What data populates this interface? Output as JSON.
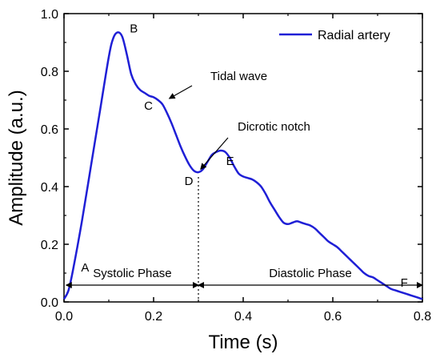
{
  "chart_data": {
    "type": "line",
    "xlabel": "Time (s)",
    "ylabel": "Amplitude (a.u.)",
    "xlim": [
      0.0,
      0.8
    ],
    "ylim": [
      0.0,
      1.0
    ],
    "x_ticks": [
      "0.0",
      "0.2",
      "0.4",
      "0.6",
      "0.8"
    ],
    "y_ticks": [
      "0.0",
      "0.2",
      "0.4",
      "0.6",
      "0.8",
      "1.0"
    ],
    "grid": false,
    "legend_position": "top-right",
    "series": [
      {
        "name": "Radial artery",
        "color": "#1f1fd6",
        "x": [
          0.0,
          0.01,
          0.02,
          0.04,
          0.06,
          0.08,
          0.1,
          0.11,
          0.12,
          0.13,
          0.14,
          0.15,
          0.16,
          0.17,
          0.18,
          0.19,
          0.2,
          0.21,
          0.22,
          0.23,
          0.24,
          0.25,
          0.26,
          0.27,
          0.28,
          0.29,
          0.3,
          0.31,
          0.32,
          0.33,
          0.34,
          0.35,
          0.36,
          0.37,
          0.38,
          0.39,
          0.4,
          0.41,
          0.42,
          0.43,
          0.44,
          0.45,
          0.46,
          0.47,
          0.48,
          0.49,
          0.5,
          0.51,
          0.52,
          0.53,
          0.54,
          0.55,
          0.56,
          0.57,
          0.58,
          0.59,
          0.6,
          0.61,
          0.62,
          0.63,
          0.64,
          0.65,
          0.66,
          0.67,
          0.68,
          0.69,
          0.7,
          0.71,
          0.72,
          0.73,
          0.74,
          0.75,
          0.76,
          0.77,
          0.78,
          0.79,
          0.8
        ],
        "values": [
          0.01,
          0.04,
          0.11,
          0.28,
          0.47,
          0.66,
          0.85,
          0.915,
          0.935,
          0.92,
          0.86,
          0.79,
          0.755,
          0.735,
          0.725,
          0.715,
          0.71,
          0.7,
          0.685,
          0.655,
          0.62,
          0.58,
          0.54,
          0.505,
          0.475,
          0.455,
          0.45,
          0.46,
          0.485,
          0.51,
          0.52,
          0.525,
          0.52,
          0.5,
          0.47,
          0.445,
          0.435,
          0.43,
          0.425,
          0.415,
          0.4,
          0.375,
          0.345,
          0.32,
          0.295,
          0.275,
          0.27,
          0.275,
          0.28,
          0.275,
          0.27,
          0.265,
          0.255,
          0.24,
          0.225,
          0.21,
          0.2,
          0.19,
          0.175,
          0.16,
          0.145,
          0.13,
          0.115,
          0.1,
          0.09,
          0.085,
          0.075,
          0.065,
          0.055,
          0.045,
          0.04,
          0.035,
          0.03,
          0.025,
          0.02,
          0.015,
          0.01
        ]
      }
    ],
    "point_labels": [
      {
        "label": "A",
        "x": 0.015,
        "y": 0.05
      },
      {
        "label": "B",
        "x": 0.12,
        "y": 0.935
      },
      {
        "label": "C",
        "x": 0.21,
        "y": 0.7
      },
      {
        "label": "D",
        "x": 0.3,
        "y": 0.45
      },
      {
        "label": "E",
        "x": 0.36,
        "y": 0.52
      },
      {
        "label": "F",
        "x": 0.77,
        "y": 0.02
      }
    ],
    "annotations": [
      {
        "text": "Tidal wave",
        "arrow_to": {
          "x": 0.235,
          "y": 0.7
        }
      },
      {
        "text": "Dicrotic notch",
        "arrow_to": {
          "x": 0.305,
          "y": 0.455
        }
      }
    ],
    "phases": [
      {
        "label": "Systolic Phase",
        "x_start": 0.005,
        "x_end": 0.3
      },
      {
        "label": "Diastolic Phase",
        "x_start": 0.3,
        "x_end": 0.8
      }
    ],
    "divider_x": 0.3
  }
}
